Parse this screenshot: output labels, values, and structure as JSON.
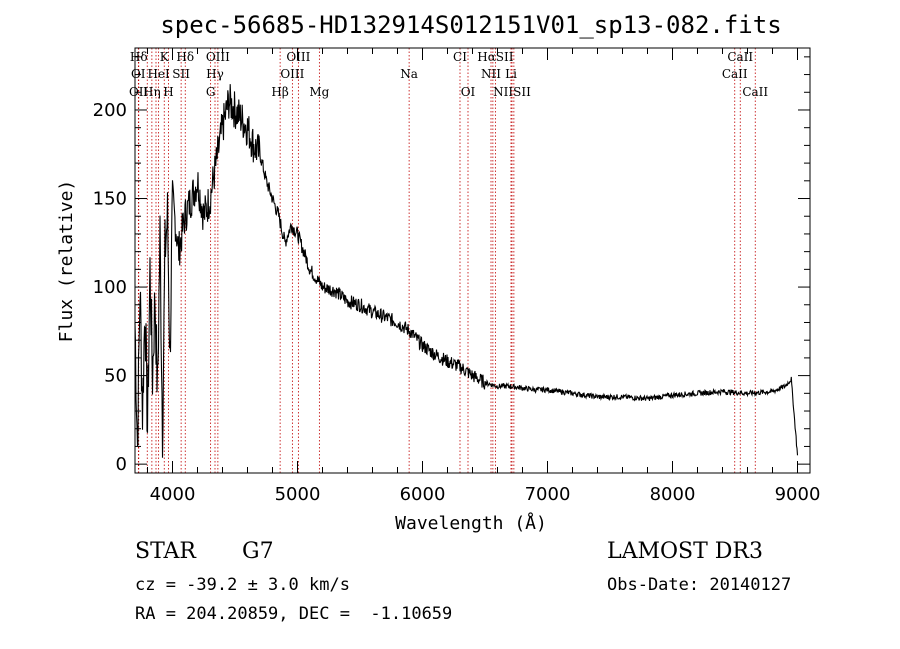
{
  "chart_data": {
    "type": "line",
    "title": "spec-56685-HD132914S012151V01_sp13-082.fits",
    "xlabel": "Wavelength (Å)",
    "ylabel": "Flux (relative)",
    "xlim": [
      3700,
      9100
    ],
    "ylim": [
      -5,
      235
    ],
    "xticks": [
      4000,
      5000,
      6000,
      7000,
      8000,
      9000
    ],
    "yticks": [
      0,
      50,
      100,
      150,
      200
    ],
    "grid": false,
    "series": [
      {
        "name": "flux",
        "x": [
          3700,
          3720,
          3740,
          3760,
          3780,
          3800,
          3820,
          3840,
          3860,
          3880,
          3900,
          3920,
          3940,
          3960,
          3980,
          4000,
          4050,
          4100,
          4150,
          4200,
          4250,
          4300,
          4350,
          4400,
          4450,
          4500,
          4550,
          4600,
          4650,
          4700,
          4750,
          4800,
          4850,
          4900,
          4950,
          5000,
          5050,
          5100,
          5150,
          5200,
          5300,
          5400,
          5500,
          5600,
          5700,
          5800,
          5900,
          6000,
          6100,
          6200,
          6300,
          6400,
          6500,
          6600,
          6700,
          6800,
          6900,
          7000,
          7200,
          7400,
          7600,
          7800,
          8000,
          8200,
          8400,
          8600,
          8800,
          8900,
          8950,
          9000
        ],
        "y": [
          80,
          10,
          100,
          30,
          90,
          20,
          110,
          50,
          95,
          40,
          130,
          20,
          120,
          140,
          60,
          150,
          120,
          140,
          150,
          160,
          140,
          150,
          170,
          190,
          205,
          200,
          195,
          190,
          180,
          175,
          160,
          150,
          140,
          125,
          135,
          130,
          120,
          110,
          105,
          100,
          98,
          92,
          90,
          86,
          83,
          80,
          75,
          67,
          62,
          58,
          55,
          50,
          46,
          44,
          44,
          43,
          42,
          42,
          40,
          38,
          38,
          37,
          39,
          40,
          41,
          40,
          41,
          44,
          48,
          5
        ]
      }
    ],
    "spectral_lines": [
      {
        "label": "Hδ",
        "x": 3730,
        "row": 1
      },
      {
        "label": "K",
        "x": 3934,
        "row": 1
      },
      {
        "label": "Hδ",
        "x": 4102,
        "row": 1
      },
      {
        "label": "OIII",
        "x": 4363,
        "row": 1
      },
      {
        "label": "OIII",
        "x": 5007,
        "row": 1
      },
      {
        "label": "CI",
        "x": 6300,
        "row": 1
      },
      {
        "label": "HαSII",
        "x": 6583,
        "row": 1
      },
      {
        "label": "CaII",
        "x": 8542,
        "row": 1
      },
      {
        "label": "OI",
        "x": 3726,
        "row": 2
      },
      {
        "label": "HeI",
        "x": 3889,
        "row": 2
      },
      {
        "label": "SII",
        "x": 4069,
        "row": 2
      },
      {
        "label": "Hγ",
        "x": 4340,
        "row": 2
      },
      {
        "label": "OIII",
        "x": 4959,
        "row": 2
      },
      {
        "label": "Na",
        "x": 5893,
        "row": 2
      },
      {
        "label": "NII",
        "x": 6548,
        "row": 2
      },
      {
        "label": "Li",
        "x": 6708,
        "row": 2
      },
      {
        "label": "CaII",
        "x": 8498,
        "row": 2
      },
      {
        "label": "OII",
        "x": 3729,
        "row": 3
      },
      {
        "label": "Hη",
        "x": 3835,
        "row": 3
      },
      {
        "label": "H",
        "x": 3968,
        "row": 3
      },
      {
        "label": "G",
        "x": 4305,
        "row": 3
      },
      {
        "label": "Hβ",
        "x": 4861,
        "row": 3
      },
      {
        "label": "Mg",
        "x": 5175,
        "row": 3
      },
      {
        "label": "OI",
        "x": 6364,
        "row": 3
      },
      {
        "label": "NIISII",
        "x": 6716,
        "row": 3
      },
      {
        "label": "CaII",
        "x": 8662,
        "row": 3
      }
    ],
    "line_x": [
      3727,
      3730,
      3798,
      3835,
      3868,
      3889,
      3934,
      3968,
      4069,
      4102,
      4305,
      4340,
      4363,
      4861,
      4959,
      5007,
      5175,
      5893,
      6300,
      6364,
      6548,
      6563,
      6583,
      6708,
      6716,
      6731,
      8498,
      8542,
      8662
    ],
    "line_color": "#c00000"
  },
  "info": {
    "object_class": "STAR",
    "subclass": "G7",
    "survey": "LAMOST DR3",
    "cz": "cz = -39.2 ± 3.0 km/s",
    "obs_date": "Obs-Date: 20140127",
    "radec": "RA = 204.20859, DEC =  -1.10659"
  }
}
